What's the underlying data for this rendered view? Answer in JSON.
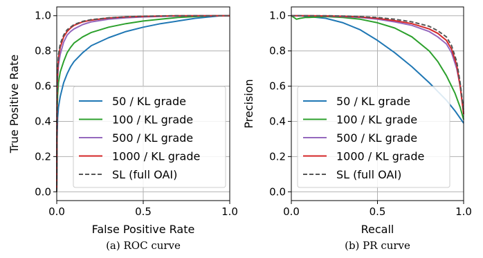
{
  "chart_data": [
    {
      "type": "line",
      "caption": "(a) ROC curve",
      "xlabel": "False Positive Rate",
      "ylabel": "True Positive Rate",
      "xlim": [
        0,
        1
      ],
      "ylim": [
        -0.05,
        1.05
      ],
      "xticks": [
        0.0,
        0.5,
        1.0
      ],
      "xtick_labels": [
        "0.0",
        "0.5",
        "1.0"
      ],
      "yticks": [
        0.0,
        0.2,
        0.4,
        0.6,
        0.8,
        1.0
      ],
      "ytick_labels": [
        "0.0",
        "0.2",
        "0.4",
        "0.6",
        "0.8",
        "1.0"
      ],
      "grid": true,
      "legend_position": "bottom-right",
      "series": [
        {
          "name": "50 / KL grade",
          "color": "#1f77b4",
          "dash": false,
          "x": [
            0,
            0.002,
            0.005,
            0.01,
            0.02,
            0.04,
            0.06,
            0.08,
            0.1,
            0.15,
            0.2,
            0.3,
            0.4,
            0.5,
            0.6,
            0.7,
            0.8,
            0.9,
            0.95,
            1.0
          ],
          "y": [
            0,
            0.3,
            0.42,
            0.48,
            0.54,
            0.62,
            0.67,
            0.71,
            0.74,
            0.79,
            0.83,
            0.875,
            0.91,
            0.935,
            0.955,
            0.97,
            0.985,
            0.995,
            1.0,
            1.0
          ]
        },
        {
          "name": "100 / KL grade",
          "color": "#2ca02c",
          "dash": false,
          "x": [
            0,
            0.002,
            0.005,
            0.01,
            0.02,
            0.04,
            0.06,
            0.08,
            0.1,
            0.15,
            0.2,
            0.3,
            0.4,
            0.5,
            0.6,
            0.7,
            0.8,
            0.9,
            1.0
          ],
          "y": [
            0,
            0.45,
            0.55,
            0.62,
            0.68,
            0.74,
            0.79,
            0.82,
            0.845,
            0.88,
            0.905,
            0.935,
            0.955,
            0.97,
            0.98,
            0.99,
            0.995,
            1.0,
            1.0
          ]
        },
        {
          "name": "500 / KL grade",
          "color": "#9467bd",
          "dash": false,
          "x": [
            0,
            0.002,
            0.005,
            0.01,
            0.02,
            0.04,
            0.06,
            0.08,
            0.1,
            0.15,
            0.2,
            0.3,
            0.4,
            0.5,
            0.6,
            0.7,
            0.8,
            1.0
          ],
          "y": [
            0,
            0.55,
            0.65,
            0.72,
            0.78,
            0.85,
            0.89,
            0.91,
            0.925,
            0.95,
            0.965,
            0.98,
            0.988,
            0.993,
            0.996,
            0.998,
            1.0,
            1.0
          ]
        },
        {
          "name": "1000 / KL grade",
          "color": "#d62728",
          "dash": false,
          "x": [
            0,
            0.002,
            0.005,
            0.01,
            0.02,
            0.04,
            0.06,
            0.08,
            0.1,
            0.15,
            0.2,
            0.3,
            0.4,
            0.5,
            0.6,
            0.7,
            1.0
          ],
          "y": [
            0,
            0.58,
            0.68,
            0.76,
            0.82,
            0.88,
            0.91,
            0.93,
            0.945,
            0.965,
            0.975,
            0.987,
            0.993,
            0.996,
            0.998,
            1.0,
            1.0
          ]
        },
        {
          "name": "SL (full OAI)",
          "color": "#555555",
          "dash": true,
          "x": [
            0,
            0.002,
            0.005,
            0.01,
            0.02,
            0.04,
            0.06,
            0.08,
            0.1,
            0.15,
            0.2,
            0.3,
            0.4,
            0.5,
            0.6,
            0.7,
            1.0
          ],
          "y": [
            0,
            0.6,
            0.7,
            0.78,
            0.84,
            0.89,
            0.92,
            0.935,
            0.95,
            0.968,
            0.978,
            0.988,
            0.994,
            0.997,
            0.999,
            1.0,
            1.0
          ]
        }
      ]
    },
    {
      "type": "line",
      "caption": "(b) PR curve",
      "xlabel": "Recall",
      "ylabel": "Precision",
      "xlim": [
        0,
        1
      ],
      "ylim": [
        -0.05,
        1.05
      ],
      "xticks": [
        0.0,
        0.5,
        1.0
      ],
      "xtick_labels": [
        "0.0",
        "0.5",
        "1.0"
      ],
      "yticks": [
        0.0,
        0.2,
        0.4,
        0.6,
        0.8,
        1.0
      ],
      "ytick_labels": [
        "0.0",
        "0.2",
        "0.4",
        "0.6",
        "0.8",
        "1.0"
      ],
      "grid": true,
      "legend_position": "bottom-left",
      "series": [
        {
          "name": "50 / KL grade",
          "color": "#1f77b4",
          "dash": false,
          "x": [
            0,
            0.05,
            0.1,
            0.2,
            0.3,
            0.4,
            0.5,
            0.6,
            0.7,
            0.8,
            0.9,
            0.95,
            1.0
          ],
          "y": [
            1.0,
            1.0,
            0.995,
            0.985,
            0.96,
            0.92,
            0.86,
            0.79,
            0.71,
            0.62,
            0.52,
            0.46,
            0.39
          ]
        },
        {
          "name": "100 / KL grade",
          "color": "#2ca02c",
          "dash": false,
          "x": [
            0,
            0.03,
            0.05,
            0.08,
            0.1,
            0.2,
            0.3,
            0.4,
            0.5,
            0.6,
            0.7,
            0.8,
            0.85,
            0.9,
            0.95,
            0.98,
            1.0
          ],
          "y": [
            1.0,
            0.98,
            0.985,
            0.99,
            0.99,
            0.995,
            0.99,
            0.98,
            0.96,
            0.93,
            0.88,
            0.8,
            0.74,
            0.66,
            0.56,
            0.48,
            0.41
          ]
        },
        {
          "name": "500 / KL grade",
          "color": "#9467bd",
          "dash": false,
          "x": [
            0,
            0.1,
            0.2,
            0.3,
            0.4,
            0.5,
            0.6,
            0.7,
            0.8,
            0.85,
            0.9,
            0.93,
            0.96,
            0.98,
            1.0
          ],
          "y": [
            1.0,
            1.0,
            0.998,
            0.995,
            0.99,
            0.98,
            0.965,
            0.945,
            0.91,
            0.88,
            0.84,
            0.79,
            0.7,
            0.6,
            0.45
          ]
        },
        {
          "name": "1000 / KL grade",
          "color": "#d62728",
          "dash": false,
          "x": [
            0,
            0.1,
            0.2,
            0.3,
            0.4,
            0.5,
            0.6,
            0.7,
            0.8,
            0.85,
            0.9,
            0.93,
            0.96,
            0.98,
            1.0
          ],
          "y": [
            1.0,
            1.0,
            0.999,
            0.997,
            0.993,
            0.985,
            0.972,
            0.955,
            0.925,
            0.9,
            0.86,
            0.81,
            0.72,
            0.6,
            0.44
          ]
        },
        {
          "name": "SL (full OAI)",
          "color": "#555555",
          "dash": true,
          "x": [
            0,
            0.1,
            0.2,
            0.3,
            0.4,
            0.5,
            0.6,
            0.7,
            0.8,
            0.85,
            0.9,
            0.93,
            0.96,
            0.98,
            1.0
          ],
          "y": [
            1.0,
            1.0,
            1.0,
            0.998,
            0.995,
            0.99,
            0.98,
            0.965,
            0.94,
            0.915,
            0.88,
            0.83,
            0.74,
            0.62,
            0.46
          ]
        }
      ]
    }
  ]
}
